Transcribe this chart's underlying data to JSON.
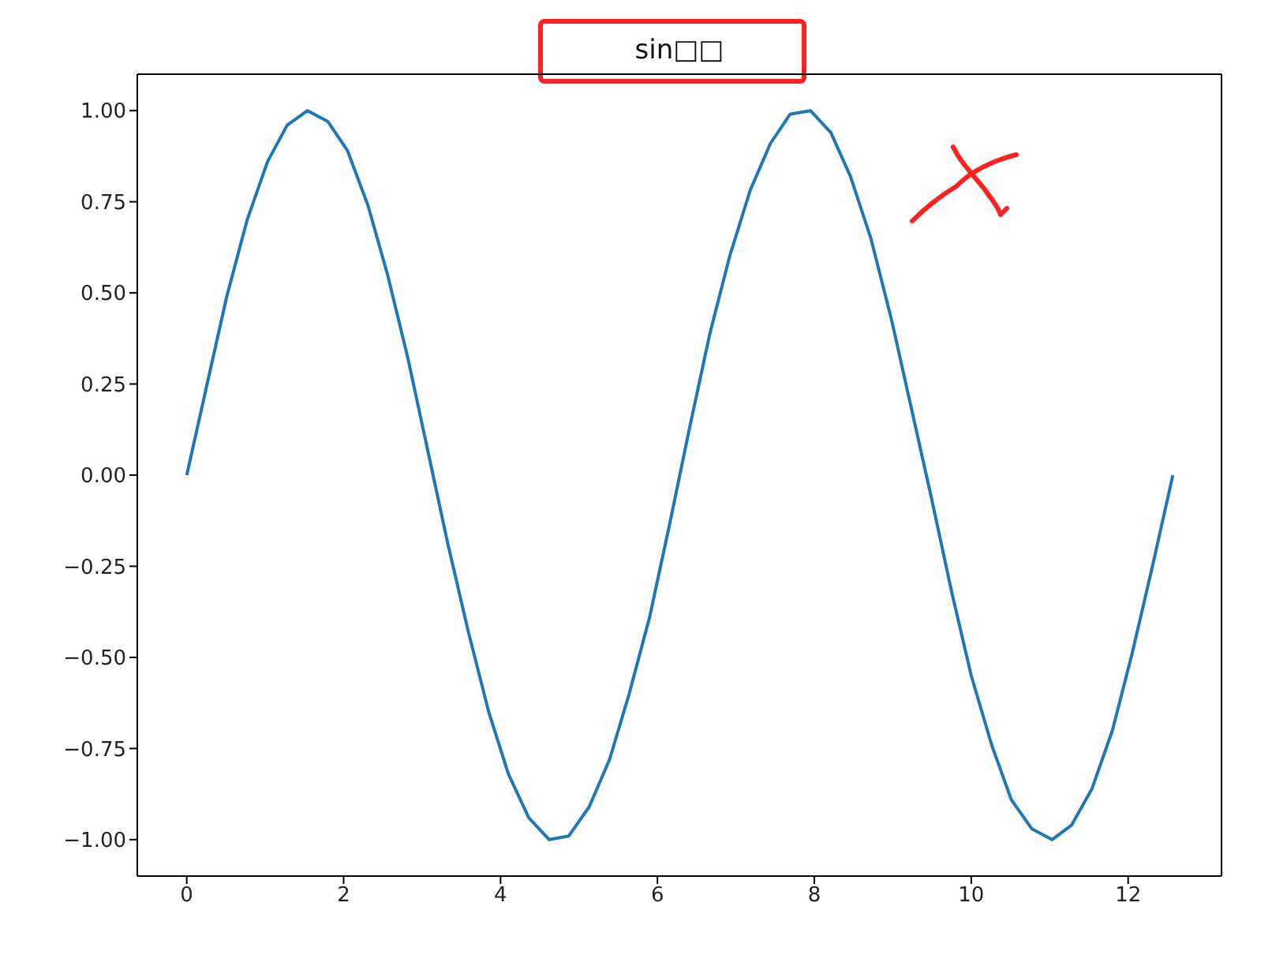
{
  "chart_data": {
    "type": "line",
    "title": "sin□□",
    "x": [
      0,
      0.26,
      0.51,
      0.77,
      1.03,
      1.28,
      1.54,
      1.8,
      2.05,
      2.31,
      2.56,
      2.82,
      3.08,
      3.33,
      3.59,
      3.85,
      4.1,
      4.36,
      4.62,
      4.87,
      5.13,
      5.39,
      5.64,
      5.9,
      6.16,
      6.41,
      6.67,
      6.92,
      7.18,
      7.44,
      7.69,
      7.95,
      8.21,
      8.46,
      8.72,
      8.98,
      9.23,
      9.49,
      9.75,
      10,
      10.26,
      10.51,
      10.77,
      11.03,
      11.28,
      11.54,
      11.8,
      12.05,
      12.31,
      12.57
    ],
    "series": [
      {
        "color": "#1f77b4",
        "values": [
          0,
          0.25,
          0.49,
          0.7,
          0.86,
          0.96,
          1,
          0.97,
          0.89,
          0.74,
          0.55,
          0.32,
          0.06,
          -0.19,
          -0.43,
          -0.65,
          -0.82,
          -0.94,
          -1,
          -0.99,
          -0.91,
          -0.78,
          -0.6,
          -0.39,
          -0.13,
          0.13,
          0.39,
          0.6,
          0.78,
          0.91,
          0.99,
          1,
          0.94,
          0.82,
          0.65,
          0.43,
          0.19,
          -0.06,
          -0.32,
          -0.55,
          -0.74,
          -0.89,
          -0.97,
          -1,
          -0.96,
          -0.86,
          -0.7,
          -0.49,
          -0.25,
          0
        ]
      }
    ],
    "xlim": [
      -0.63,
      13.19
    ],
    "xticks": [
      0,
      2,
      4,
      6,
      8,
      10,
      12
    ],
    "ylim": [
      -1.1,
      1.1
    ],
    "yticks": [
      {
        "value": -1,
        "label": "−1.00"
      },
      {
        "value": -0.75,
        "label": "−0.75"
      },
      {
        "value": -0.5,
        "label": "−0.50"
      },
      {
        "value": -0.25,
        "label": "−0.25"
      },
      {
        "value": 0,
        "label": "0.00"
      },
      {
        "value": 0.25,
        "label": "0.25"
      },
      {
        "value": 0.5,
        "label": "0.50"
      },
      {
        "value": 0.75,
        "label": "0.75"
      },
      {
        "value": 1,
        "label": "1.00"
      }
    ]
  }
}
